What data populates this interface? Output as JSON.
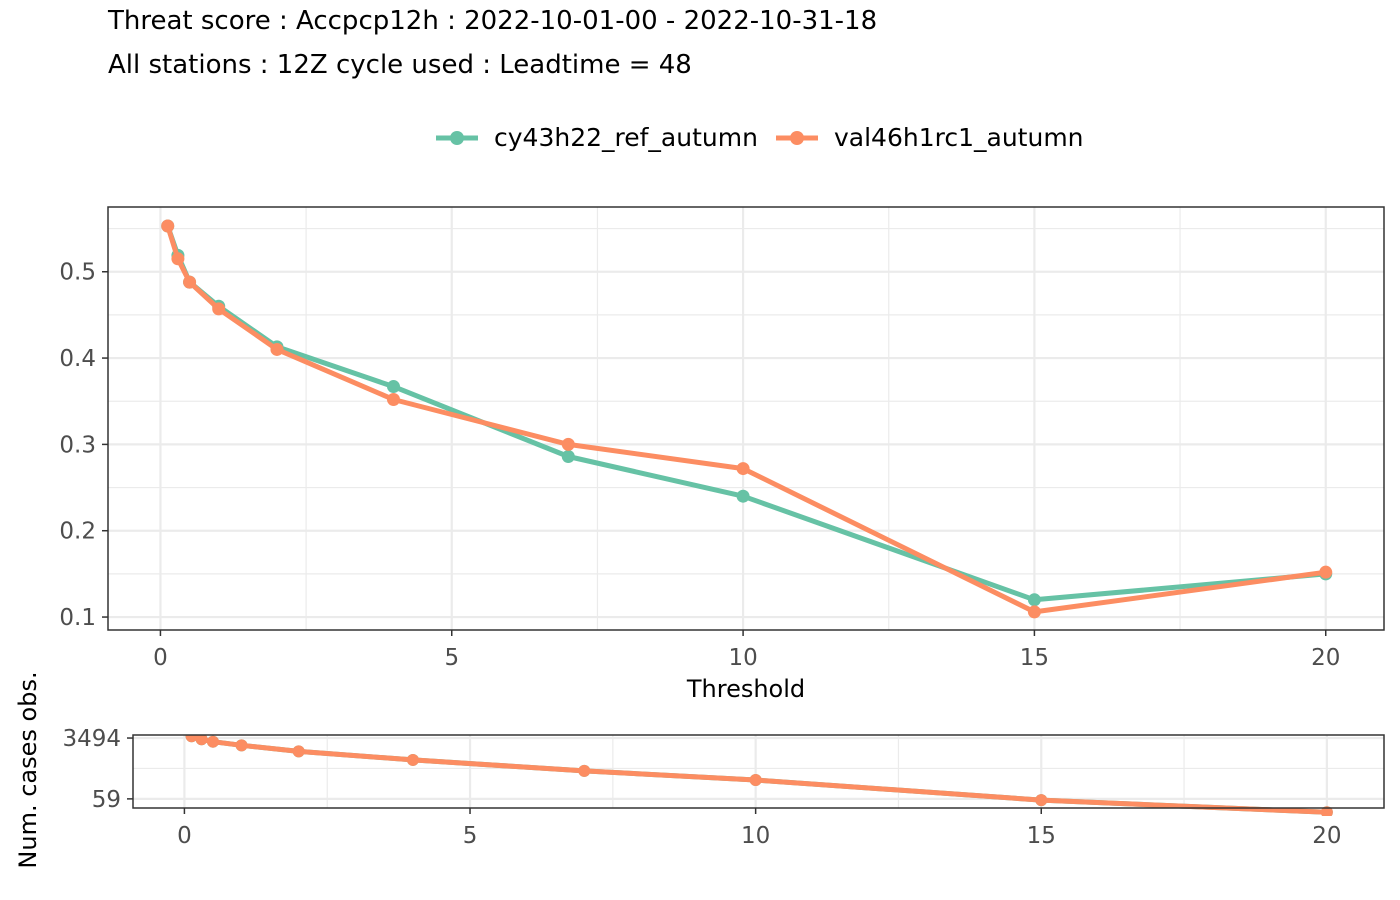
{
  "title": "Threat score : Accpcp12h : 2022-10-01-00 - 2022-10-31-18",
  "subtitle": "All stations : 12Z cycle used : Leadtime = 48",
  "colors": {
    "series1": "#66c2a5",
    "series2": "#fc8d62",
    "grid": "#ebebeb",
    "panel_border": "#333333"
  },
  "chart_data": [
    {
      "type": "line",
      "xlabel": "Threshold",
      "ylabel": "",
      "xlim": [
        -0.9,
        21
      ],
      "ylim": [
        0.085,
        0.575
      ],
      "x_ticks": [
        0,
        5,
        10,
        15,
        20
      ],
      "y_ticks": [
        0.1,
        0.2,
        0.3,
        0.4,
        0.5
      ],
      "x_tick_labels": [
        "0",
        "5",
        "10",
        "15",
        "20"
      ],
      "y_tick_labels": [
        "0.1",
        "0.2",
        "0.3",
        "0.4",
        "0.5"
      ],
      "grid": true,
      "legend_position": "top",
      "x": [
        0.125,
        0.3,
        0.5,
        1,
        2,
        4,
        7,
        10,
        15,
        20
      ],
      "series": [
        {
          "name": "cy43h22_ref_autumn",
          "color": "#66c2a5",
          "values": [
            0.553,
            0.519,
            0.488,
            0.46,
            0.413,
            0.367,
            0.286,
            0.24,
            0.12,
            0.15
          ]
        },
        {
          "name": "val46h1rc1_autumn",
          "color": "#fc8d62",
          "values": [
            0.553,
            0.515,
            0.488,
            0.457,
            0.41,
            0.352,
            0.3,
            0.272,
            0.106,
            0.152
          ]
        }
      ]
    },
    {
      "type": "line",
      "xlabel": "",
      "ylabel": "Num. cases obs.",
      "xlim": [
        -0.9,
        21
      ],
      "ylim": [
        -0.15,
        1.05
      ],
      "x_ticks": [
        0,
        5,
        10,
        15,
        20
      ],
      "x_tick_labels": [
        "0",
        "5",
        "10",
        "15",
        "20"
      ],
      "y_ticks": [
        1.0,
        0.0
      ],
      "y_tick_labels": [
        "3494",
        "59"
      ],
      "grid": true,
      "x": [
        0.125,
        0.3,
        0.5,
        1,
        2,
        4,
        7,
        10,
        15,
        20
      ],
      "series": [
        {
          "name": "cy43h22_ref_autumn",
          "color": "#66c2a5",
          "values": [
            1.03,
            0.98,
            0.94,
            0.88,
            0.78,
            0.64,
            0.46,
            0.31,
            -0.02,
            -0.22
          ]
        },
        {
          "name": "val46h1rc1_autumn",
          "color": "#fc8d62",
          "values": [
            1.03,
            0.98,
            0.94,
            0.88,
            0.78,
            0.64,
            0.46,
            0.31,
            -0.02,
            -0.22
          ]
        }
      ]
    }
  ]
}
